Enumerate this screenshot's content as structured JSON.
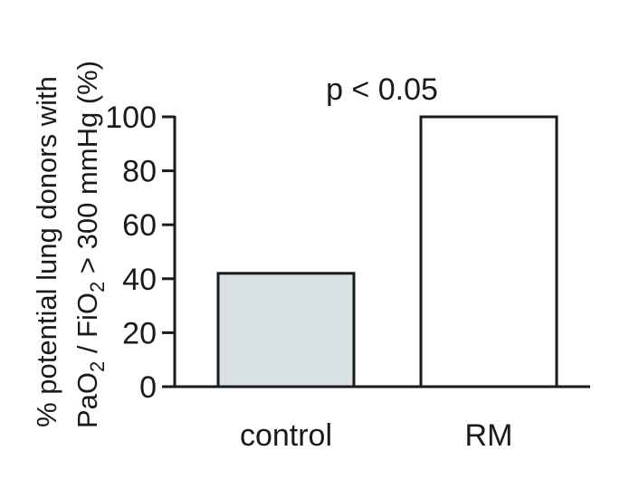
{
  "chart_data": {
    "type": "bar",
    "categories": [
      "control",
      "RM"
    ],
    "values": [
      42,
      100
    ],
    "ylim": [
      0,
      100
    ],
    "yticks": [
      0,
      20,
      40,
      60,
      80,
      100
    ],
    "ylabel": {
      "line1": "% potential lung donors with",
      "line2": [
        "Pa",
        "O",
        "2",
        " / Fi",
        "O",
        "2",
        " > 300 mmHg (%)"
      ]
    },
    "annotation": "p < 0.05",
    "bar_colors": [
      "#d9e1e4",
      "#ffffff"
    ],
    "bar_stroke": "#1a1a1a",
    "grid": false,
    "legend": "none"
  }
}
